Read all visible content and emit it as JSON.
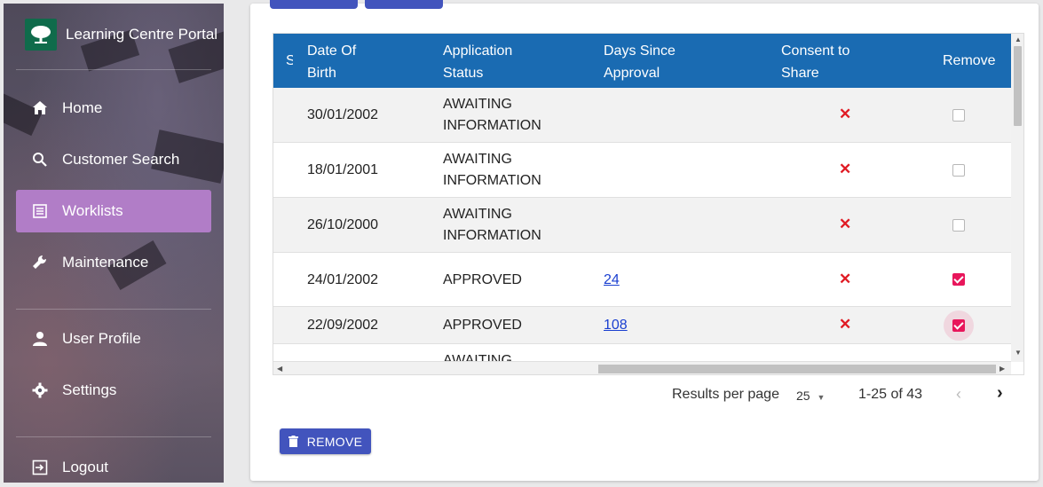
{
  "sidebar": {
    "app_title": "Learning Centre Portal",
    "nav": [
      {
        "label": "Home",
        "icon": "home-icon"
      },
      {
        "label": "Customer Search",
        "icon": "search-icon"
      },
      {
        "label": "Worklists",
        "icon": "list-icon",
        "active": true
      },
      {
        "label": "Maintenance",
        "icon": "wrench-icon"
      },
      {
        "label": "User Profile",
        "icon": "person-icon"
      },
      {
        "label": "Settings",
        "icon": "gear-icon"
      },
      {
        "label": "Logout",
        "icon": "logout-icon"
      }
    ]
  },
  "table": {
    "columns": {
      "partial": "S",
      "dob": "Date Of Birth",
      "status": "Application Status",
      "days": "Days Since Approval",
      "consent": "Consent to Share",
      "remove": "Remove"
    },
    "rows": [
      {
        "dob": "30/01/2002",
        "status": "AWAITING INFORMATION",
        "days": "",
        "consent": "✕",
        "remove": false
      },
      {
        "dob": "18/01/2001",
        "status": "AWAITING INFORMATION",
        "days": "",
        "consent": "✕",
        "remove": false
      },
      {
        "dob": "26/10/2000",
        "status": "AWAITING INFORMATION",
        "days": "",
        "consent": "✕",
        "remove": false
      },
      {
        "dob": "24/01/2002",
        "status": "APPROVED",
        "days": "24",
        "consent": "✕",
        "remove": true
      },
      {
        "dob": "22/09/2002",
        "status": "APPROVED",
        "days": "108",
        "consent": "✕",
        "remove": true
      },
      {
        "dob": "",
        "status": "AWAITING",
        "days": "",
        "consent": "",
        "remove": false
      }
    ]
  },
  "pagination": {
    "results_label": "Results per page",
    "per_page": "25",
    "range": "1-25 of 43",
    "prev_icon": "chevron-left-icon",
    "next_icon": "chevron-right-icon"
  },
  "actions": {
    "remove_label": "REMOVE"
  },
  "colors": {
    "header": "#1a6bb2",
    "active_nav": "#b17dc7",
    "primary_button": "#4254bd",
    "checkbox_on": "#e8165b",
    "cross": "#e01b24"
  }
}
